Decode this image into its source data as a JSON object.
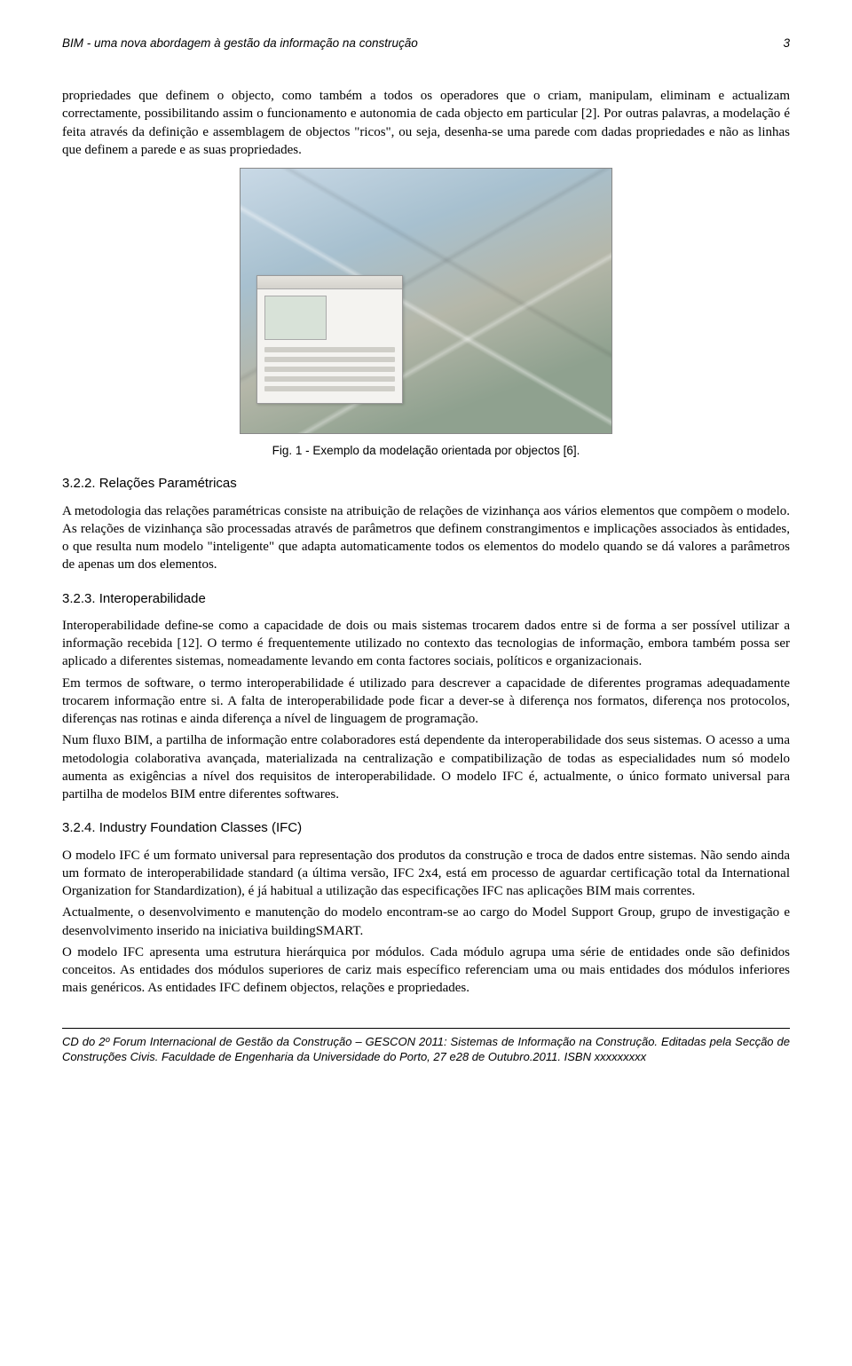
{
  "header": {
    "running_title": "BIM - uma nova abordagem à gestão da informação na construção",
    "page_number": "3"
  },
  "intro_paragraph": "propriedades que definem o objecto, como também a todos os operadores que o criam, manipulam, eliminam e actualizam correctamente, possibilitando assim o funcionamento e autonomia de cada objecto em particular [2]. Por outras palavras, a modelação é feita através da definição e assemblagem de objectos \"ricos\", ou seja, desenha-se uma parede com dadas propriedades e não as linhas que definem a parede e as suas propriedades.",
  "figure": {
    "caption": "Fig. 1 - Exemplo da modelação orientada por objectos [6]."
  },
  "sections": {
    "s322": {
      "heading": "3.2.2. Relações Paramétricas",
      "text": "A metodologia das relações paramétricas consiste na atribuição de relações de vizinhança aos vários elementos que compõem o modelo. As relações de vizinhança são processadas através de parâmetros que definem constrangimentos e implicações associados às entidades, o que resulta num modelo \"inteligente\" que adapta automaticamente todos os elementos do modelo quando se dá valores a parâmetros de apenas um dos elementos."
    },
    "s323": {
      "heading": "3.2.3. Interoperabilidade",
      "p1": "Interoperabilidade define-se como a capacidade de dois ou mais sistemas trocarem dados entre si de forma a ser possível utilizar a informação recebida [12]. O termo é frequentemente utilizado no contexto das tecnologias de informação, embora também possa ser aplicado a diferentes sistemas, nomeadamente levando em conta factores sociais, políticos e organizacionais.",
      "p2": "Em termos de software, o termo interoperabilidade é utilizado para descrever a capacidade de diferentes programas adequadamente trocarem informação entre si. A falta de interoperabilidade pode ficar a dever-se à diferença nos formatos, diferença nos protocolos, diferenças nas rotinas e ainda diferença a nível de linguagem de programação.",
      "p3": "Num fluxo BIM, a partilha de informação entre colaboradores está dependente da interoperabilidade dos seus sistemas. O acesso a uma metodologia colaborativa avançada, materializada na centralização e compatibilização de todas as especialidades num só modelo aumenta as exigências a nível dos requisitos de interoperabilidade. O modelo IFC é, actualmente, o único formato universal para partilha de modelos BIM entre diferentes softwares."
    },
    "s324": {
      "heading": "3.2.4. Industry Foundation Classes (IFC)",
      "p1": "O modelo IFC é um formato universal para representação dos produtos da construção e troca de dados entre sistemas. Não sendo ainda um formato de interoperabilidade standard (a última versão, IFC 2x4, está em processo de aguardar certificação total da International Organization for Standardization), é já habitual a utilização das especificações IFC nas aplicações BIM mais correntes.",
      "p2": "Actualmente, o desenvolvimento e manutenção do modelo encontram-se ao cargo do Model Support Group, grupo de investigação e desenvolvimento inserido na iniciativa buildingSMART.",
      "p3": "O modelo IFC apresenta uma estrutura hierárquica por módulos. Cada módulo agrupa uma série de entidades onde são definidos conceitos. As entidades dos módulos superiores de cariz mais específico referenciam uma ou mais entidades dos módulos inferiores mais genéricos. As entidades IFC definem objectos, relações e propriedades."
    }
  },
  "footer": {
    "text": "CD do 2º Forum Internacional de Gestão da Construção – GESCON 2011: Sistemas de Informação na Construção. Editadas pela Secção de Construções Civis. Faculdade de Engenharia da Universidade do Porto, 27 e28 de Outubro.2011. ISBN xxxxxxxxx"
  }
}
